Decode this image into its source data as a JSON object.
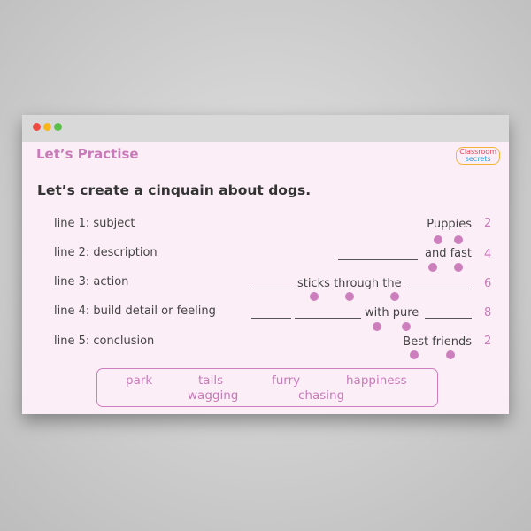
{
  "window": {
    "controls": [
      "close",
      "minimize",
      "maximize"
    ],
    "colors": {
      "close": "#ee4b43",
      "minimize": "#f6b61c",
      "maximize": "#5cbf4a"
    }
  },
  "header": {
    "title": "Let’s Practise",
    "logo_line1": "Classroom",
    "logo_line2": "secrets"
  },
  "question": "Let’s create a cinquain about dogs.",
  "lines": [
    {
      "label": "line 1: subject",
      "text": "Puppies",
      "syllables": "2"
    },
    {
      "label": "line 2: description",
      "text": "and fast",
      "syllables": "4"
    },
    {
      "label": "line 3: action",
      "text": "sticks through the",
      "syllables": "6"
    },
    {
      "label": "line 4: build detail or feeling",
      "text": "with pure",
      "syllables": "8"
    },
    {
      "label": "line 5: conclusion",
      "text": "Best friends",
      "syllables": "2"
    }
  ],
  "word_bank": [
    "park",
    "tails",
    "furry",
    "happiness",
    "wagging",
    "chasing"
  ],
  "accent": "#cc7fbc"
}
